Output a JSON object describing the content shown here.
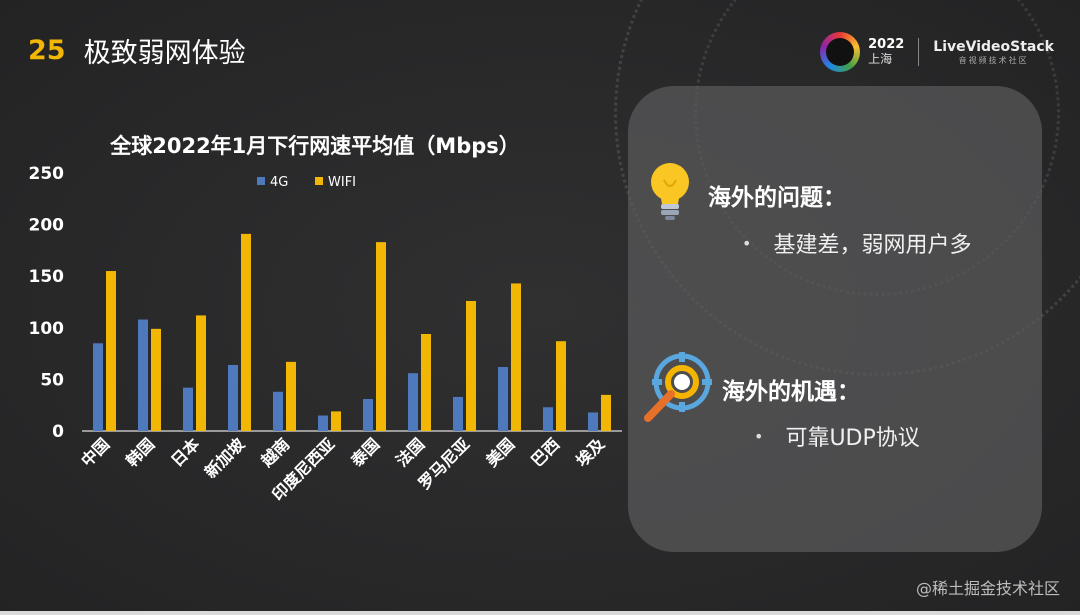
{
  "header": {
    "number": "25",
    "title": "极致弱网体验"
  },
  "brand": {
    "year": "2022",
    "city": "上海",
    "name": "LiveVideoStack",
    "subtitle": "音视频技术社区"
  },
  "chart_data": {
    "type": "bar",
    "title": "全球2022年1月下行网速平均值（Mbps）",
    "categories": [
      "中国",
      "韩国",
      "日本",
      "新加坡",
      "越南",
      "印度尼西亚",
      "泰国",
      "法国",
      "罗马尼亚",
      "美国",
      "巴西",
      "埃及"
    ],
    "series": [
      {
        "name": "4G",
        "color": "#4f79bd",
        "values": [
          85,
          108,
          42,
          64,
          38,
          15,
          31,
          56,
          33,
          62,
          23,
          18
        ]
      },
      {
        "name": "WIFI",
        "color": "#f2b705",
        "values": [
          155,
          99,
          112,
          191,
          67,
          19,
          183,
          94,
          126,
          143,
          87,
          35
        ]
      }
    ],
    "ylim": [
      0,
      250
    ],
    "yticks": [
      "0",
      "50",
      "100",
      "150",
      "200",
      "250"
    ],
    "legend_position": "top",
    "grid": false
  },
  "panel": {
    "item1": {
      "title": "海外的问题：",
      "bullet": "基建差，弱网用户多",
      "icon": "lightbulb-icon"
    },
    "item2": {
      "title": "海外的机遇：",
      "bullet": "可靠UDP协议",
      "icon": "target-magnifier-icon"
    }
  },
  "bullet_symbol": "•",
  "watermark": "@稀土掘金技术社区"
}
